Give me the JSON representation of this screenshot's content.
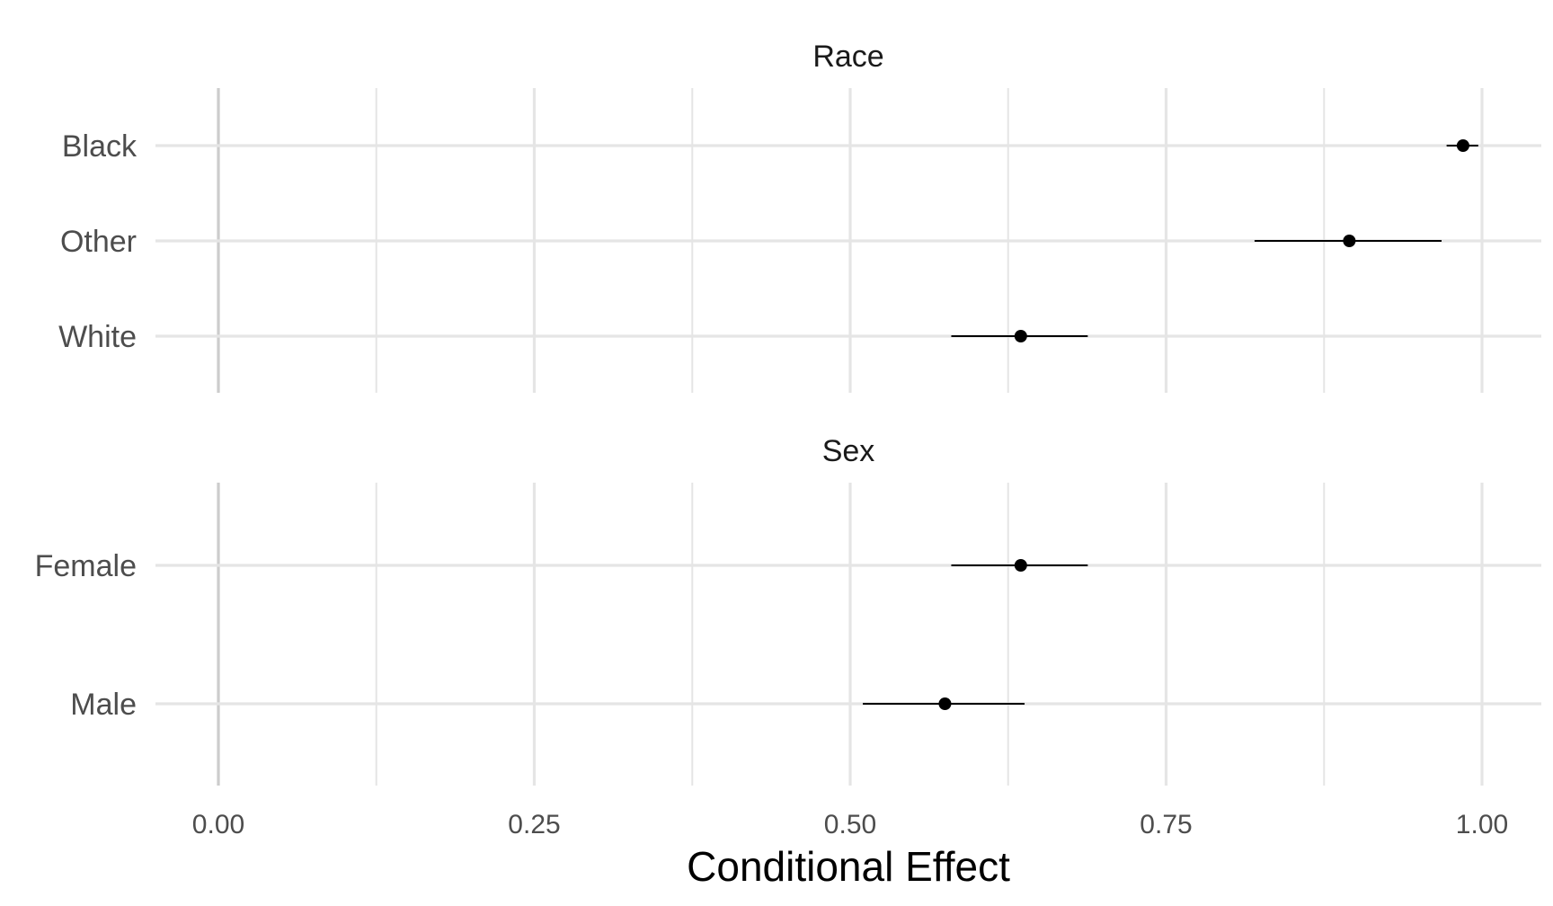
{
  "chart_data": {
    "type": "scatter",
    "subtype": "point-range",
    "xlabel": "Conditional Effect",
    "ylabel": "",
    "xlim": [
      -0.05,
      1.05
    ],
    "xticks": [
      0.0,
      0.25,
      0.5,
      0.75,
      1.0
    ],
    "xtick_labels": [
      "0.00",
      "0.25",
      "0.50",
      "0.75",
      "1.00"
    ],
    "grid": true,
    "legend": "none",
    "colors": {
      "point": "#000000",
      "grid": "#e5e5e5",
      "zero_line": "#cccccc"
    },
    "panels": [
      {
        "title": "Race",
        "categories": [
          "Black",
          "Other",
          "White"
        ],
        "estimates": [
          0.985,
          0.895,
          0.635
        ],
        "lower": [
          0.972,
          0.82,
          0.58
        ],
        "upper": [
          0.997,
          0.968,
          0.688
        ]
      },
      {
        "title": "Sex",
        "categories": [
          "Female",
          "Male"
        ],
        "estimates": [
          0.635,
          0.575
        ],
        "lower": [
          0.58,
          0.51
        ],
        "upper": [
          0.688,
          0.638
        ]
      }
    ]
  }
}
